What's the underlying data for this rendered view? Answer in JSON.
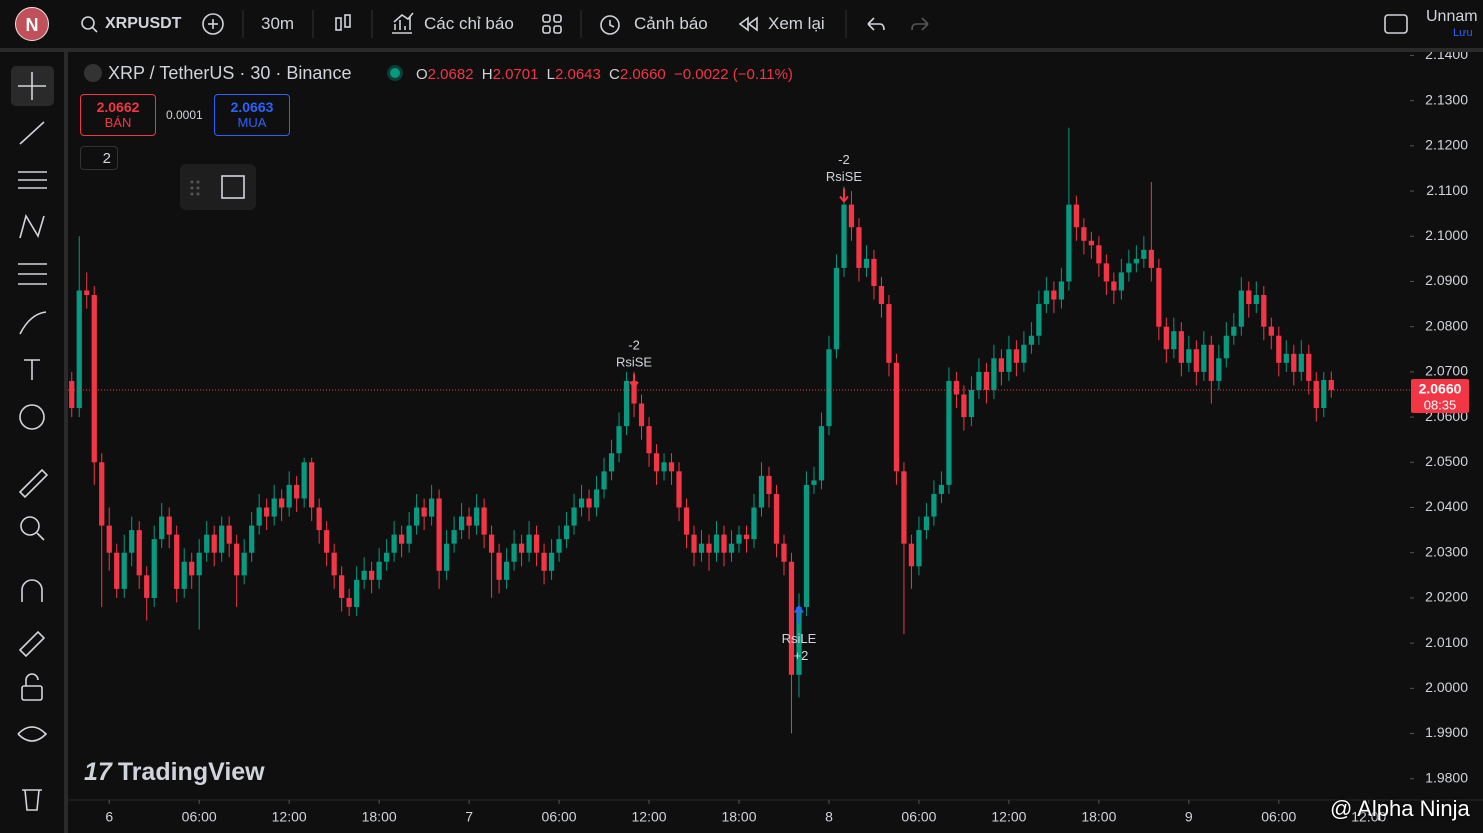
{
  "toolbar": {
    "avatar": "N",
    "symbol": "XRPUSDT",
    "interval": "30m",
    "indicators": "Các chỉ báo",
    "alerts": "Cảnh báo",
    "replay": "Xem lại",
    "layout_name": "Unnam",
    "save": "Lưu"
  },
  "legend": {
    "title": "XRP / TetherUS · 30 · Binance",
    "o_label": "O",
    "open": "2.0682",
    "h_label": "H",
    "high": "2.0701",
    "l_label": "L",
    "low": "2.0643",
    "c_label": "C",
    "close": "2.0660",
    "change": "−0.0022 (−0.11%)"
  },
  "trade": {
    "sell_price": "2.0662",
    "sell": "BÁN",
    "spread": "0.0001",
    "buy_price": "2.0663",
    "buy": "MUA",
    "collapse": "2"
  },
  "watermark": "TradingView",
  "credit": "@ Alpha Ninja",
  "chart_data": {
    "type": "candlestick",
    "colors": {
      "up": "#089981",
      "down": "#f23645"
    },
    "xlim": [
      -0.5,
      178.5
    ],
    "ylim": [
      1.9753,
      2.1412
    ],
    "yticks": [
      {
        "value": 1.98,
        "label": "1.9800"
      },
      {
        "value": 1.99,
        "label": "1.9900"
      },
      {
        "value": 2.0,
        "label": "2.0000"
      },
      {
        "value": 2.01,
        "label": "2.0100"
      },
      {
        "value": 2.02,
        "label": "2.0200"
      },
      {
        "value": 2.03,
        "label": "2.0300"
      },
      {
        "value": 2.04,
        "label": "2.0400"
      },
      {
        "value": 2.05,
        "label": "2.0500"
      },
      {
        "value": 2.06,
        "label": "2.0600"
      },
      {
        "value": 2.07,
        "label": "2.0700"
      },
      {
        "value": 2.08,
        "label": "2.0800"
      },
      {
        "value": 2.09,
        "label": "2.0900"
      },
      {
        "value": 2.1,
        "label": "2.1000"
      },
      {
        "value": 2.11,
        "label": "2.1100"
      },
      {
        "value": 2.12,
        "label": "2.1200"
      },
      {
        "value": 2.13,
        "label": "2.1300"
      },
      {
        "value": 2.14,
        "label": "2.1400"
      }
    ],
    "xticks": [
      {
        "value": 5,
        "label": "6"
      },
      {
        "value": 17,
        "label": "06:00"
      },
      {
        "value": 29,
        "label": "12:00"
      },
      {
        "value": 41,
        "label": "18:00"
      },
      {
        "value": 53,
        "label": "7"
      },
      {
        "value": 65,
        "label": "06:00"
      },
      {
        "value": 77,
        "label": "12:00"
      },
      {
        "value": 89,
        "label": "18:00"
      },
      {
        "value": 101,
        "label": "8"
      },
      {
        "value": 113,
        "label": "06:00"
      },
      {
        "value": 125,
        "label": "12:00"
      },
      {
        "value": 137,
        "label": "18:00"
      },
      {
        "value": 149,
        "label": "9"
      },
      {
        "value": 161,
        "label": "06:00"
      },
      {
        "value": 173,
        "label": "12:00"
      }
    ],
    "last_price": {
      "value": 2.066,
      "label": "2.0660",
      "countdown": "08:35"
    },
    "annotations": [
      {
        "index": 75,
        "text": "RsiSE",
        "qty": "-2"
      },
      {
        "index": 103,
        "text": "RsiSE",
        "qty": "-2"
      },
      {
        "index": 97,
        "text": "RsiLE",
        "qty": "+2"
      }
    ],
    "candles": [
      [
        2.068,
        2.07,
        2.06,
        2.062
      ],
      [
        2.062,
        2.1,
        2.06,
        2.088
      ],
      [
        2.088,
        2.092,
        2.084,
        2.087
      ],
      [
        2.087,
        2.089,
        2.045,
        2.05
      ],
      [
        2.05,
        2.052,
        2.018,
        2.036
      ],
      [
        2.036,
        2.04,
        2.026,
        2.03
      ],
      [
        2.03,
        2.032,
        2.02,
        2.022
      ],
      [
        2.022,
        2.034,
        2.02,
        2.03
      ],
      [
        2.03,
        2.038,
        2.027,
        2.035
      ],
      [
        2.035,
        2.037,
        2.022,
        2.025
      ],
      [
        2.025,
        2.027,
        2.015,
        2.02
      ],
      [
        2.02,
        2.036,
        2.018,
        2.033
      ],
      [
        2.033,
        2.041,
        2.031,
        2.038
      ],
      [
        2.038,
        2.04,
        2.031,
        2.034
      ],
      [
        2.034,
        2.036,
        2.019,
        2.022
      ],
      [
        2.022,
        2.031,
        2.02,
        2.028
      ],
      [
        2.028,
        2.03,
        2.022,
        2.025
      ],
      [
        2.025,
        2.033,
        2.013,
        2.03
      ],
      [
        2.03,
        2.037,
        2.028,
        2.034
      ],
      [
        2.034,
        2.036,
        2.027,
        2.03
      ],
      [
        2.03,
        2.038,
        2.028,
        2.036
      ],
      [
        2.036,
        2.038,
        2.029,
        2.032
      ],
      [
        2.032,
        2.034,
        2.018,
        2.025
      ],
      [
        2.025,
        2.033,
        2.023,
        2.03
      ],
      [
        2.03,
        2.039,
        2.028,
        2.036
      ],
      [
        2.036,
        2.043,
        2.034,
        2.04
      ],
      [
        2.04,
        2.042,
        2.035,
        2.038
      ],
      [
        2.038,
        2.045,
        2.036,
        2.042
      ],
      [
        2.042,
        2.044,
        2.037,
        2.04
      ],
      [
        2.04,
        2.048,
        2.038,
        2.045
      ],
      [
        2.045,
        2.047,
        2.039,
        2.042
      ],
      [
        2.042,
        2.051,
        2.04,
        2.05
      ],
      [
        2.05,
        2.051,
        2.037,
        2.04
      ],
      [
        2.04,
        2.042,
        2.032,
        2.035
      ],
      [
        2.035,
        2.037,
        2.027,
        2.03
      ],
      [
        2.03,
        2.032,
        2.022,
        2.025
      ],
      [
        2.025,
        2.027,
        2.017,
        2.02
      ],
      [
        2.02,
        2.022,
        2.016,
        2.018
      ],
      [
        2.018,
        2.027,
        2.016,
        2.024
      ],
      [
        2.024,
        2.029,
        2.022,
        2.026
      ],
      [
        2.026,
        2.028,
        2.021,
        2.024
      ],
      [
        2.024,
        2.031,
        2.022,
        2.028
      ],
      [
        2.028,
        2.033,
        2.026,
        2.03
      ],
      [
        2.03,
        2.037,
        2.028,
        2.034
      ],
      [
        2.034,
        2.036,
        2.029,
        2.032
      ],
      [
        2.032,
        2.039,
        2.03,
        2.036
      ],
      [
        2.036,
        2.043,
        2.034,
        2.04
      ],
      [
        2.04,
        2.042,
        2.035,
        2.038
      ],
      [
        2.038,
        2.045,
        2.036,
        2.042
      ],
      [
        2.042,
        2.044,
        2.022,
        2.026
      ],
      [
        2.026,
        2.035,
        2.024,
        2.032
      ],
      [
        2.032,
        2.038,
        2.03,
        2.035
      ],
      [
        2.035,
        2.041,
        2.033,
        2.038
      ],
      [
        2.038,
        2.04,
        2.033,
        2.036
      ],
      [
        2.036,
        2.043,
        2.034,
        2.04
      ],
      [
        2.04,
        2.042,
        2.031,
        2.034
      ],
      [
        2.034,
        2.036,
        2.02,
        2.03
      ],
      [
        2.03,
        2.032,
        2.021,
        2.024
      ],
      [
        2.024,
        2.031,
        2.022,
        2.028
      ],
      [
        2.028,
        2.035,
        2.026,
        2.032
      ],
      [
        2.032,
        2.034,
        2.027,
        2.03
      ],
      [
        2.03,
        2.037,
        2.028,
        2.034
      ],
      [
        2.034,
        2.036,
        2.027,
        2.03
      ],
      [
        2.03,
        2.032,
        2.023,
        2.026
      ],
      [
        2.026,
        2.033,
        2.024,
        2.03
      ],
      [
        2.03,
        2.036,
        2.028,
        2.033
      ],
      [
        2.033,
        2.039,
        2.031,
        2.036
      ],
      [
        2.036,
        2.043,
        2.034,
        2.04
      ],
      [
        2.04,
        2.045,
        2.038,
        2.042
      ],
      [
        2.042,
        2.044,
        2.037,
        2.04
      ],
      [
        2.04,
        2.047,
        2.038,
        2.044
      ],
      [
        2.044,
        2.051,
        2.042,
        2.048
      ],
      [
        2.048,
        2.055,
        2.046,
        2.052
      ],
      [
        2.052,
        2.061,
        2.05,
        2.058
      ],
      [
        2.058,
        2.07,
        2.056,
        2.068
      ],
      [
        2.068,
        2.07,
        2.06,
        2.063
      ],
      [
        2.063,
        2.065,
        2.055,
        2.058
      ],
      [
        2.058,
        2.06,
        2.049,
        2.052
      ],
      [
        2.052,
        2.054,
        2.045,
        2.048
      ],
      [
        2.048,
        2.052,
        2.046,
        2.05
      ],
      [
        2.05,
        2.052,
        2.045,
        2.048
      ],
      [
        2.048,
        2.05,
        2.037,
        2.04
      ],
      [
        2.04,
        2.042,
        2.031,
        2.034
      ],
      [
        2.034,
        2.036,
        2.027,
        2.03
      ],
      [
        2.03,
        2.035,
        2.028,
        2.032
      ],
      [
        2.032,
        2.034,
        2.026,
        2.03
      ],
      [
        2.03,
        2.037,
        2.028,
        2.034
      ],
      [
        2.034,
        2.036,
        2.027,
        2.03
      ],
      [
        2.03,
        2.035,
        2.028,
        2.032
      ],
      [
        2.032,
        2.036,
        2.03,
        2.034
      ],
      [
        2.034,
        2.036,
        2.03,
        2.033
      ],
      [
        2.033,
        2.043,
        2.031,
        2.04
      ],
      [
        2.04,
        2.05,
        2.038,
        2.047
      ],
      [
        2.047,
        2.049,
        2.04,
        2.043
      ],
      [
        2.043,
        2.045,
        2.029,
        2.032
      ],
      [
        2.032,
        2.034,
        2.025,
        2.028
      ],
      [
        2.028,
        2.03,
        1.99,
        2.003
      ],
      [
        2.003,
        2.021,
        1.998,
        2.018
      ],
      [
        2.018,
        2.048,
        2.016,
        2.045
      ],
      [
        2.045,
        2.049,
        2.043,
        2.046
      ],
      [
        2.046,
        2.061,
        2.044,
        2.058
      ],
      [
        2.058,
        2.078,
        2.056,
        2.075
      ],
      [
        2.075,
        2.096,
        2.073,
        2.093
      ],
      [
        2.093,
        2.111,
        2.091,
        2.107
      ],
      [
        2.107,
        2.11,
        2.099,
        2.102
      ],
      [
        2.102,
        2.104,
        2.09,
        2.093
      ],
      [
        2.093,
        2.098,
        2.091,
        2.095
      ],
      [
        2.095,
        2.097,
        2.086,
        2.089
      ],
      [
        2.089,
        2.091,
        2.082,
        2.085
      ],
      [
        2.085,
        2.087,
        2.069,
        2.072
      ],
      [
        2.072,
        2.074,
        2.045,
        2.048
      ],
      [
        2.048,
        2.05,
        2.012,
        2.032
      ],
      [
        2.032,
        2.034,
        2.022,
        2.027
      ],
      [
        2.027,
        2.038,
        2.025,
        2.035
      ],
      [
        2.035,
        2.041,
        2.033,
        2.038
      ],
      [
        2.038,
        2.046,
        2.036,
        2.043
      ],
      [
        2.043,
        2.048,
        2.041,
        2.045
      ],
      [
        2.045,
        2.071,
        2.043,
        2.068
      ],
      [
        2.068,
        2.07,
        2.062,
        2.065
      ],
      [
        2.065,
        2.067,
        2.057,
        2.06
      ],
      [
        2.06,
        2.069,
        2.058,
        2.066
      ],
      [
        2.066,
        2.073,
        2.064,
        2.07
      ],
      [
        2.07,
        2.072,
        2.063,
        2.066
      ],
      [
        2.066,
        2.076,
        2.064,
        2.073
      ],
      [
        2.073,
        2.075,
        2.067,
        2.07
      ],
      [
        2.07,
        2.078,
        2.068,
        2.075
      ],
      [
        2.075,
        2.077,
        2.069,
        2.072
      ],
      [
        2.072,
        2.079,
        2.07,
        2.076
      ],
      [
        2.076,
        2.081,
        2.074,
        2.078
      ],
      [
        2.078,
        2.088,
        2.076,
        2.085
      ],
      [
        2.085,
        2.091,
        2.083,
        2.088
      ],
      [
        2.088,
        2.09,
        2.083,
        2.086
      ],
      [
        2.086,
        2.093,
        2.084,
        2.09
      ],
      [
        2.09,
        2.124,
        2.088,
        2.107
      ],
      [
        2.107,
        2.109,
        2.099,
        2.102
      ],
      [
        2.102,
        2.104,
        2.096,
        2.099
      ],
      [
        2.099,
        2.101,
        2.095,
        2.098
      ],
      [
        2.098,
        2.1,
        2.091,
        2.094
      ],
      [
        2.094,
        2.096,
        2.087,
        2.09
      ],
      [
        2.09,
        2.092,
        2.085,
        2.088
      ],
      [
        2.088,
        2.095,
        2.086,
        2.092
      ],
      [
        2.092,
        2.097,
        2.09,
        2.094
      ],
      [
        2.094,
        2.098,
        2.092,
        2.095
      ],
      [
        2.095,
        2.1,
        2.093,
        2.097
      ],
      [
        2.097,
        2.112,
        2.09,
        2.093
      ],
      [
        2.093,
        2.095,
        2.077,
        2.08
      ],
      [
        2.08,
        2.082,
        2.072,
        2.075
      ],
      [
        2.075,
        2.082,
        2.073,
        2.079
      ],
      [
        2.079,
        2.081,
        2.069,
        2.072
      ],
      [
        2.072,
        2.078,
        2.07,
        2.075
      ],
      [
        2.075,
        2.077,
        2.067,
        2.07
      ],
      [
        2.07,
        2.079,
        2.068,
        2.076
      ],
      [
        2.076,
        2.078,
        2.063,
        2.068
      ],
      [
        2.068,
        2.076,
        2.066,
        2.073
      ],
      [
        2.073,
        2.081,
        2.071,
        2.078
      ],
      [
        2.078,
        2.083,
        2.076,
        2.08
      ],
      [
        2.08,
        2.091,
        2.078,
        2.088
      ],
      [
        2.088,
        2.09,
        2.082,
        2.085
      ],
      [
        2.085,
        2.09,
        2.083,
        2.087
      ],
      [
        2.087,
        2.089,
        2.077,
        2.08
      ],
      [
        2.08,
        2.082,
        2.075,
        2.078
      ],
      [
        2.078,
        2.08,
        2.069,
        2.072
      ],
      [
        2.072,
        2.077,
        2.07,
        2.074
      ],
      [
        2.074,
        2.076,
        2.067,
        2.07
      ],
      [
        2.07,
        2.077,
        2.068,
        2.074
      ],
      [
        2.074,
        2.076,
        2.065,
        2.068
      ],
      [
        2.068,
        2.07,
        2.059,
        2.062
      ],
      [
        2.062,
        2.07,
        2.06,
        2.0682
      ],
      [
        2.0682,
        2.0701,
        2.0643,
        2.066
      ]
    ]
  }
}
